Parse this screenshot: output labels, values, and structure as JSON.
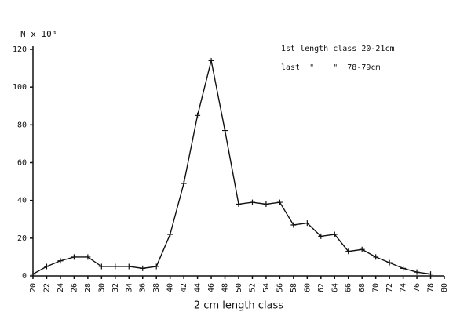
{
  "chart_data": {
    "type": "line",
    "y_label": "N x 10³",
    "x_label": "2 cm length class",
    "annotations": [
      "1st length class 20-21cm",
      "last  \"    \"  78-79cm"
    ],
    "x": [
      20,
      22,
      24,
      26,
      28,
      30,
      32,
      34,
      36,
      38,
      40,
      42,
      44,
      46,
      48,
      50,
      52,
      54,
      56,
      58,
      60,
      62,
      64,
      66,
      68,
      70,
      72,
      74,
      76,
      78
    ],
    "series": [
      {
        "color": "#111111",
        "values": [
          1,
          5,
          8,
          10,
          10,
          5,
          5,
          5,
          4,
          5,
          22,
          49,
          85,
          114,
          77,
          38,
          39,
          38,
          39,
          27,
          28,
          21,
          22,
          13,
          14,
          10,
          7,
          4,
          2,
          1
        ]
      }
    ],
    "xlim": [
      20,
      80
    ],
    "xticks": [
      20,
      22,
      24,
      26,
      28,
      30,
      32,
      34,
      36,
      38,
      40,
      42,
      44,
      46,
      48,
      50,
      52,
      54,
      56,
      58,
      60,
      62,
      64,
      66,
      68,
      70,
      72,
      74,
      76,
      78,
      80
    ],
    "ylim": [
      0,
      120
    ],
    "yticks": [
      0,
      20,
      40,
      60,
      80,
      100,
      120
    ],
    "grid": false
  }
}
